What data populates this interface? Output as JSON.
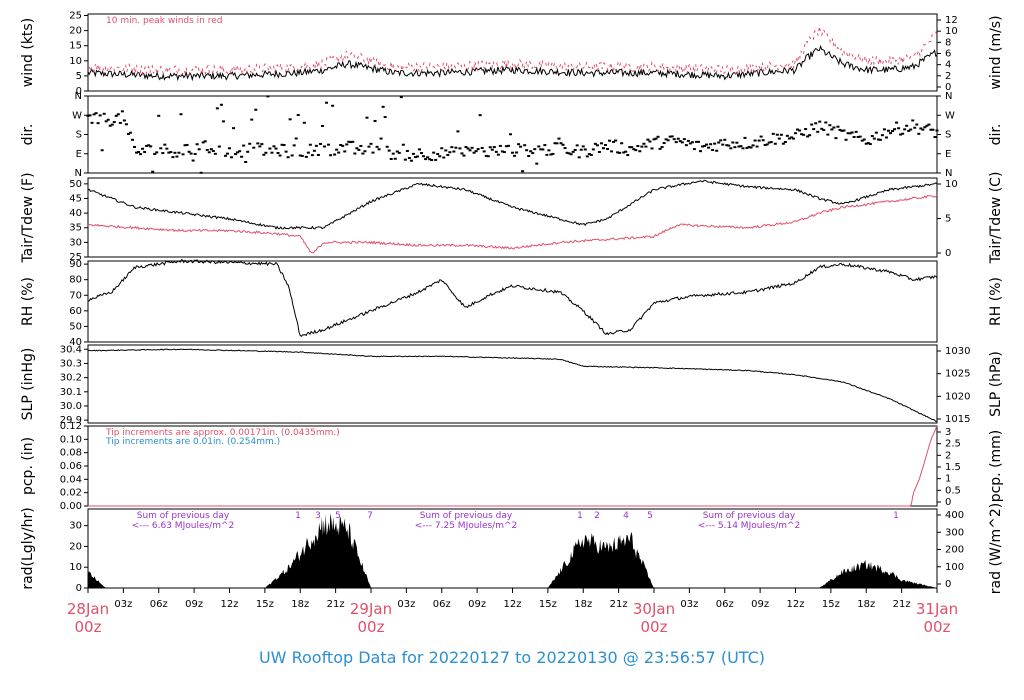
{
  "footer": "UW Rooftop Data for 20220127  to  20220130 @ 23:56:57  (UTC)",
  "colors": {
    "main": "#000000",
    "red": "#e0506a",
    "blue": "#2b8fd0",
    "purple": "#9933cc"
  },
  "x_axis": {
    "hour_ticks": [
      "03z",
      "06z",
      "09z",
      "12z",
      "15z",
      "18z",
      "21z",
      "03z",
      "06z",
      "09z",
      "12z",
      "15z",
      "18z",
      "21z",
      "03z",
      "06z",
      "09z",
      "12z",
      "15z",
      "18z",
      "21z"
    ],
    "day_labels": [
      {
        "date": "28Jan",
        "hour": "00z"
      },
      {
        "date": "29Jan",
        "hour": "00z"
      },
      {
        "date": "30Jan",
        "hour": "00z"
      },
      {
        "date": "31Jan",
        "hour": "00z"
      }
    ]
  },
  "chart_data": [
    {
      "type": "line",
      "ylabel": "wind (kts)",
      "ylabel_right": "wind (m/s)",
      "ylim": [
        0,
        25.5
      ],
      "yticks": [
        0,
        5,
        10,
        15,
        20,
        25
      ],
      "right_ticks": [
        "0",
        "2",
        "4",
        "6",
        "8",
        "10",
        "12"
      ],
      "note": "10 min. peak winds in red",
      "x_range_hours": [
        0,
        72
      ],
      "series": [
        {
          "values_x": [
            0,
            6,
            12,
            18,
            20,
            22,
            26,
            30,
            36,
            42,
            48,
            54,
            60,
            61,
            62,
            64,
            66,
            68,
            70,
            72
          ],
          "values_y": [
            6,
            5,
            5,
            6,
            7,
            9,
            6,
            6,
            7,
            6,
            6,
            5,
            7,
            11,
            14,
            9,
            7,
            7,
            8,
            13
          ]
        },
        {
          "values_x": [
            0,
            6,
            12,
            18,
            20,
            22,
            26,
            30,
            36,
            42,
            48,
            54,
            60,
            61,
            62,
            64,
            66,
            68,
            70,
            72
          ],
          "values_y": [
            8,
            7,
            7,
            8,
            9,
            12,
            8,
            8,
            9,
            8,
            8,
            7,
            9,
            16,
            20,
            13,
            10,
            10,
            11,
            19
          ]
        }
      ]
    },
    {
      "type": "scatter",
      "ylabel": "dir.",
      "ylabel_right": "dir.",
      "ytick_labels": [
        "N",
        "E",
        "S",
        "W",
        "N"
      ],
      "x_range_hours": [
        0,
        72
      ],
      "series": [
        {
          "values_x": [
            0,
            2,
            3,
            4,
            6,
            8,
            10,
            12,
            14,
            18,
            22,
            24,
            26,
            30,
            34,
            38,
            40,
            42,
            44,
            46,
            48,
            50,
            52,
            54,
            56,
            58,
            60,
            62,
            64,
            66,
            68,
            70,
            72
          ],
          "values_y": [
            250,
            250,
            260,
            100,
            110,
            100,
            120,
            100,
            110,
            100,
            120,
            110,
            90,
            90,
            100,
            110,
            110,
            100,
            130,
            110,
            140,
            150,
            120,
            140,
            140,
            160,
            170,
            220,
            180,
            150,
            200,
            220,
            190
          ]
        }
      ]
    },
    {
      "type": "line",
      "ylabel": "Tair/Tdew (F)",
      "ylabel_right": "Tair/Tdew (C)",
      "ylim": [
        25,
        52
      ],
      "yticks": [
        25,
        30,
        35,
        40,
        45,
        50
      ],
      "right_ticks": [
        "0",
        "5",
        "10"
      ],
      "x_range_hours": [
        0,
        72
      ],
      "series": [
        {
          "values_x": [
            0,
            4,
            8,
            12,
            16,
            20,
            24,
            28,
            32,
            36,
            40,
            42,
            44,
            48,
            52,
            56,
            60,
            62,
            64,
            68,
            72
          ],
          "values_y": [
            48,
            42,
            40,
            38,
            35,
            35,
            44,
            50,
            48,
            42,
            38,
            36,
            38,
            48,
            51,
            49,
            48,
            45,
            43,
            48,
            50
          ]
        },
        {
          "values_x": [
            0,
            4,
            8,
            12,
            16,
            18,
            19,
            20,
            24,
            28,
            32,
            36,
            40,
            44,
            48,
            50,
            56,
            60,
            62,
            64,
            68,
            72
          ],
          "values_y": [
            36,
            35,
            34,
            34,
            33,
            32,
            26,
            30,
            30,
            29,
            29,
            28,
            30,
            31,
            32,
            36,
            35,
            37,
            40,
            42,
            44,
            46
          ]
        }
      ]
    },
    {
      "type": "line",
      "ylabel": "RH (%)",
      "ylabel_right": "RH (%)",
      "ylim": [
        40,
        92
      ],
      "yticks": [
        40,
        50,
        60,
        70,
        80,
        90
      ],
      "x_range_hours": [
        0,
        72
      ],
      "series": [
        {
          "values_x": [
            0,
            2,
            4,
            8,
            12,
            16,
            17,
            18,
            20,
            24,
            28,
            30,
            32,
            34,
            36,
            40,
            42,
            44,
            46,
            48,
            50,
            52,
            56,
            60,
            62,
            64,
            68,
            70,
            72
          ],
          "values_y": [
            67,
            72,
            88,
            92,
            91,
            90,
            76,
            44,
            48,
            60,
            72,
            80,
            62,
            70,
            76,
            72,
            60,
            45,
            48,
            65,
            68,
            70,
            72,
            78,
            88,
            90,
            85,
            80,
            82
          ]
        }
      ]
    },
    {
      "type": "line",
      "ylabel": "SLP (inHg)",
      "ylabel_right": "SLP (hPa)",
      "ylim": [
        29.88,
        30.43
      ],
      "yticks": [
        29.9,
        30.0,
        30.1,
        30.2,
        30.3,
        30.4
      ],
      "right_ticks": [
        "1015",
        "1020",
        "1025",
        "1030"
      ],
      "x_range_hours": [
        0,
        72
      ],
      "series": [
        {
          "values_x": [
            0,
            8,
            18,
            24,
            30,
            40,
            42,
            48,
            56,
            60,
            64,
            68,
            72
          ],
          "values_y": [
            30.39,
            30.4,
            30.38,
            30.35,
            30.35,
            30.33,
            30.28,
            30.27,
            30.25,
            30.22,
            30.17,
            30.05,
            29.89
          ]
        }
      ]
    },
    {
      "type": "line",
      "ylabel": "pcp. (in)",
      "ylabel_right": "pcp. (mm)",
      "ylim": [
        0,
        0.12
      ],
      "yticks": [
        0,
        0.02,
        0.04,
        0.06,
        0.08,
        0.1,
        0.12
      ],
      "right_ticks": [
        "0",
        "0.5",
        "1",
        "1.5",
        "2",
        "2.5",
        "3"
      ],
      "notes": [
        {
          "text": "Tip increments are approx. 0.00171in. (0.0435mm.)",
          "color": "red"
        },
        {
          "text": "Tip increments are 0.01in. (0.254mm.)",
          "color": "blue"
        }
      ],
      "x_range_hours": [
        0,
        72
      ],
      "series": [
        {
          "values_x": [
            0,
            69.8,
            70,
            70.5,
            71,
            71.5,
            72
          ],
          "values_y": [
            0,
            0,
            0.02,
            0.04,
            0.07,
            0.1,
            0.12
          ]
        }
      ]
    },
    {
      "type": "area",
      "ylabel": "rad(Lgly/hr)",
      "ylabel_right": "rad (W/m^2)",
      "ylim": [
        0,
        38
      ],
      "yticks": [
        0,
        10,
        20,
        30
      ],
      "right_ticks": [
        "0",
        "100",
        "200",
        "300",
        "400"
      ],
      "daily_notes": [
        {
          "line1": "Sum of previous day",
          "line2": "<--- 6.63 MJoules/m^2"
        },
        {
          "line1": "Sum of previous day",
          "line2": "<--- 7.25 MJoules/m^2"
        },
        {
          "line1": "Sum of previous day",
          "line2": "<--- 5.14 MJoules/m^2"
        }
      ],
      "tip_markers": [
        "1",
        "3",
        "5",
        "7",
        "1",
        "2",
        "4",
        "5",
        "1"
      ],
      "x_range_hours": [
        0,
        72
      ],
      "series": [
        {
          "values_x": [
            0,
            1.5,
            15,
            17,
            20,
            22,
            24,
            39,
            40,
            42,
            44,
            46,
            48,
            62,
            63,
            64,
            66,
            68,
            69,
            72
          ],
          "values_y": [
            8,
            0,
            0,
            10,
            33,
            30,
            0,
            0,
            8,
            25,
            20,
            25,
            0,
            0,
            4,
            8,
            12,
            8,
            4,
            0
          ]
        }
      ]
    }
  ]
}
